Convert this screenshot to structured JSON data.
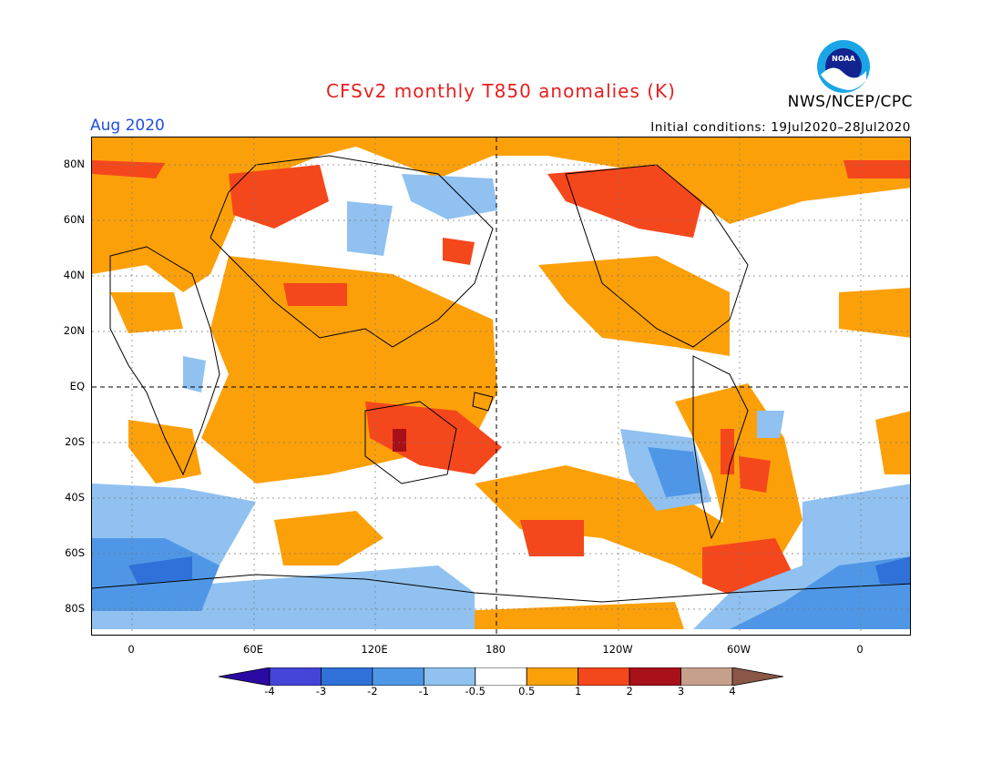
{
  "header": {
    "title": "CFSv2 monthly T850 anomalies (K)",
    "org": "NWS/NCEP/CPC",
    "valid_month": "Aug 2020",
    "initial_conditions": "Initial conditions: 19Jul2020–28Jul2020",
    "logo_text": "NOAA"
  },
  "axes": {
    "y_ticks": [
      "80N",
      "60N",
      "40N",
      "20N",
      "EQ",
      "20S",
      "40S",
      "60S",
      "80S"
    ],
    "x_ticks": [
      "0",
      "60E",
      "120E",
      "180",
      "120W",
      "60W",
      "0"
    ]
  },
  "legend": {
    "units": "K",
    "labels": [
      "-4",
      "-3",
      "-2",
      "-1",
      "-0.5",
      "0.5",
      "1",
      "2",
      "3",
      "4"
    ],
    "colors": [
      "#2a0aa3",
      "#4444d8",
      "#2f71d8",
      "#4f97e6",
      "#90c1f0",
      "#ffffff",
      "#fca00a",
      "#f5471c",
      "#a8101a",
      "#c79f8d",
      "#8a5646"
    ]
  },
  "colors": {
    "title": "#e81e1e",
    "valid_month": "#1f4fe0",
    "warm_1": "#fca00a",
    "warm_2": "#f5471c",
    "warm_3": "#a8101a",
    "cold_1": "#90c1f0",
    "cold_2": "#4f97e6",
    "cold_3": "#2f71d8"
  }
}
